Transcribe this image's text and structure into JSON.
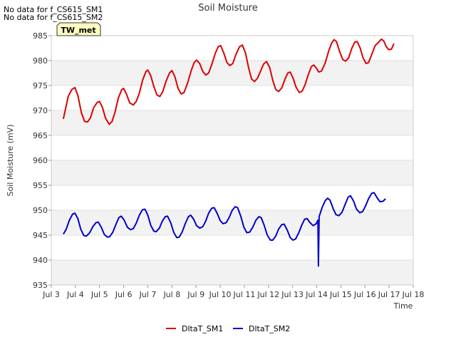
{
  "notes": [
    "No data for f_CS615_SM1",
    "No data for f_CS615_SM2"
  ],
  "chart_data": {
    "type": "line",
    "title": "Soil Moisture",
    "xlabel": "Time",
    "ylabel": "Soil Moisture (mV)",
    "badge": "TW_met",
    "xlim": [
      3,
      18
    ],
    "ylim": [
      935,
      985
    ],
    "x_ticks": [
      3,
      4,
      5,
      6,
      7,
      8,
      9,
      10,
      11,
      12,
      13,
      14,
      15,
      16,
      17,
      18
    ],
    "x_tick_labels": [
      "Jul 3",
      "Jul 4",
      "Jul 5",
      "Jul 6",
      "Jul 7",
      "Jul 8",
      "Jul 9",
      "Jul 10",
      "Jul 11",
      "Jul 12",
      "Jul 13",
      "Jul 14",
      "Jul 15",
      "Jul 16",
      "Jul 17",
      "Jul 18"
    ],
    "y_ticks": [
      935,
      940,
      945,
      950,
      955,
      960,
      965,
      970,
      975,
      980,
      985
    ],
    "grid": true,
    "legend_position": "bottom",
    "series": [
      {
        "name": "DltaT_SM1",
        "color": "#dd0000",
        "points": [
          [
            3.5,
            968.3
          ],
          [
            3.6,
            970.5
          ],
          [
            3.7,
            972.8
          ],
          [
            3.85,
            974.2
          ],
          [
            3.98,
            974.6
          ],
          [
            4.1,
            973.0
          ],
          [
            4.25,
            969.5
          ],
          [
            4.38,
            967.8
          ],
          [
            4.5,
            967.7
          ],
          [
            4.62,
            968.5
          ],
          [
            4.75,
            970.5
          ],
          [
            4.9,
            971.6
          ],
          [
            5.0,
            971.8
          ],
          [
            5.12,
            970.6
          ],
          [
            5.25,
            968.4
          ],
          [
            5.4,
            967.2
          ],
          [
            5.52,
            967.8
          ],
          [
            5.65,
            969.8
          ],
          [
            5.78,
            972.5
          ],
          [
            5.92,
            974.2
          ],
          [
            6.0,
            974.4
          ],
          [
            6.12,
            973.2
          ],
          [
            6.25,
            971.5
          ],
          [
            6.4,
            971.1
          ],
          [
            6.52,
            971.8
          ],
          [
            6.65,
            973.5
          ],
          [
            6.78,
            976.0
          ],
          [
            6.92,
            977.8
          ],
          [
            7.0,
            978.1
          ],
          [
            7.12,
            977.0
          ],
          [
            7.25,
            974.8
          ],
          [
            7.38,
            973.1
          ],
          [
            7.5,
            972.8
          ],
          [
            7.62,
            973.8
          ],
          [
            7.75,
            975.8
          ],
          [
            7.9,
            977.5
          ],
          [
            8.0,
            978.0
          ],
          [
            8.12,
            976.8
          ],
          [
            8.25,
            974.5
          ],
          [
            8.38,
            973.3
          ],
          [
            8.5,
            973.6
          ],
          [
            8.65,
            975.5
          ],
          [
            8.8,
            978.0
          ],
          [
            8.92,
            979.6
          ],
          [
            9.02,
            980.1
          ],
          [
            9.15,
            979.4
          ],
          [
            9.28,
            977.8
          ],
          [
            9.4,
            977.1
          ],
          [
            9.52,
            977.5
          ],
          [
            9.65,
            979.2
          ],
          [
            9.8,
            981.5
          ],
          [
            9.92,
            982.8
          ],
          [
            10.02,
            983.0
          ],
          [
            10.15,
            981.5
          ],
          [
            10.28,
            979.6
          ],
          [
            10.4,
            979.0
          ],
          [
            10.52,
            979.4
          ],
          [
            10.65,
            981.2
          ],
          [
            10.8,
            982.8
          ],
          [
            10.92,
            983.1
          ],
          [
            11.05,
            981.5
          ],
          [
            11.18,
            978.5
          ],
          [
            11.3,
            976.3
          ],
          [
            11.42,
            975.8
          ],
          [
            11.55,
            976.5
          ],
          [
            11.68,
            978.0
          ],
          [
            11.8,
            979.3
          ],
          [
            11.92,
            979.8
          ],
          [
            12.05,
            978.6
          ],
          [
            12.18,
            976.0
          ],
          [
            12.3,
            974.2
          ],
          [
            12.42,
            973.8
          ],
          [
            12.55,
            974.5
          ],
          [
            12.68,
            976.2
          ],
          [
            12.8,
            977.5
          ],
          [
            12.9,
            977.7
          ],
          [
            13.02,
            976.5
          ],
          [
            13.15,
            974.6
          ],
          [
            13.28,
            973.6
          ],
          [
            13.4,
            973.9
          ],
          [
            13.52,
            975.2
          ],
          [
            13.65,
            977.2
          ],
          [
            13.78,
            978.8
          ],
          [
            13.88,
            979.1
          ],
          [
            14.0,
            978.4
          ],
          [
            14.08,
            977.7
          ],
          [
            14.2,
            977.9
          ],
          [
            14.35,
            979.5
          ],
          [
            14.5,
            982.0
          ],
          [
            14.62,
            983.5
          ],
          [
            14.72,
            984.2
          ],
          [
            14.82,
            983.8
          ],
          [
            14.95,
            981.8
          ],
          [
            15.08,
            980.2
          ],
          [
            15.2,
            979.9
          ],
          [
            15.32,
            980.5
          ],
          [
            15.45,
            982.4
          ],
          [
            15.58,
            983.7
          ],
          [
            15.68,
            983.8
          ],
          [
            15.8,
            982.5
          ],
          [
            15.92,
            980.5
          ],
          [
            16.05,
            979.4
          ],
          [
            16.15,
            979.6
          ],
          [
            16.28,
            981.2
          ],
          [
            16.42,
            983.0
          ],
          [
            16.55,
            983.6
          ],
          [
            16.68,
            984.3
          ],
          [
            16.78,
            983.9
          ],
          [
            16.88,
            982.8
          ],
          [
            16.98,
            982.2
          ],
          [
            17.1,
            982.3
          ],
          [
            17.2,
            983.4
          ]
        ]
      },
      {
        "name": "DltaT_SM2",
        "color": "#0000cc",
        "points": [
          [
            3.5,
            945.2
          ],
          [
            3.62,
            946.2
          ],
          [
            3.75,
            948.0
          ],
          [
            3.88,
            949.2
          ],
          [
            3.98,
            949.4
          ],
          [
            4.1,
            948.3
          ],
          [
            4.22,
            946.2
          ],
          [
            4.35,
            944.9
          ],
          [
            4.45,
            944.8
          ],
          [
            4.58,
            945.4
          ],
          [
            4.72,
            946.7
          ],
          [
            4.85,
            947.5
          ],
          [
            4.95,
            947.6
          ],
          [
            5.08,
            946.5
          ],
          [
            5.2,
            945.1
          ],
          [
            5.32,
            944.6
          ],
          [
            5.42,
            944.7
          ],
          [
            5.55,
            945.6
          ],
          [
            5.68,
            947.2
          ],
          [
            5.8,
            948.5
          ],
          [
            5.9,
            948.8
          ],
          [
            6.02,
            948.0
          ],
          [
            6.15,
            946.6
          ],
          [
            6.28,
            946.1
          ],
          [
            6.4,
            946.3
          ],
          [
            6.52,
            947.4
          ],
          [
            6.65,
            949.0
          ],
          [
            6.78,
            950.1
          ],
          [
            6.88,
            950.2
          ],
          [
            7.0,
            949.0
          ],
          [
            7.12,
            947.0
          ],
          [
            7.25,
            945.8
          ],
          [
            7.35,
            945.7
          ],
          [
            7.48,
            946.4
          ],
          [
            7.6,
            947.8
          ],
          [
            7.72,
            948.7
          ],
          [
            7.82,
            948.8
          ],
          [
            7.95,
            947.5
          ],
          [
            8.08,
            945.5
          ],
          [
            8.2,
            944.5
          ],
          [
            8.3,
            944.6
          ],
          [
            8.42,
            945.6
          ],
          [
            8.55,
            947.3
          ],
          [
            8.68,
            948.7
          ],
          [
            8.78,
            949.0
          ],
          [
            8.9,
            948.2
          ],
          [
            9.02,
            946.9
          ],
          [
            9.15,
            946.4
          ],
          [
            9.28,
            946.7
          ],
          [
            9.4,
            947.8
          ],
          [
            9.52,
            949.4
          ],
          [
            9.65,
            950.4
          ],
          [
            9.75,
            950.5
          ],
          [
            9.88,
            949.3
          ],
          [
            10.0,
            947.9
          ],
          [
            10.12,
            947.3
          ],
          [
            10.25,
            947.5
          ],
          [
            10.38,
            948.6
          ],
          [
            10.5,
            950.0
          ],
          [
            10.62,
            950.7
          ],
          [
            10.72,
            950.5
          ],
          [
            10.85,
            948.8
          ],
          [
            10.98,
            946.6
          ],
          [
            11.1,
            945.5
          ],
          [
            11.22,
            945.6
          ],
          [
            11.35,
            946.6
          ],
          [
            11.48,
            948.0
          ],
          [
            11.6,
            948.7
          ],
          [
            11.7,
            948.5
          ],
          [
            11.82,
            947.0
          ],
          [
            11.95,
            945.0
          ],
          [
            12.08,
            944.0
          ],
          [
            12.18,
            944.0
          ],
          [
            12.3,
            944.8
          ],
          [
            12.42,
            946.2
          ],
          [
            12.55,
            947.1
          ],
          [
            12.65,
            947.2
          ],
          [
            12.78,
            946.0
          ],
          [
            12.9,
            944.5
          ],
          [
            13.02,
            944.0
          ],
          [
            13.12,
            944.2
          ],
          [
            13.25,
            945.4
          ],
          [
            13.38,
            947.0
          ],
          [
            13.5,
            948.2
          ],
          [
            13.6,
            948.3
          ],
          [
            13.72,
            947.5
          ],
          [
            13.85,
            946.9
          ],
          [
            13.98,
            947.3
          ],
          [
            14.05,
            948.0
          ],
          [
            14.07,
            938.8
          ],
          [
            14.1,
            948.7
          ],
          [
            14.22,
            950.5
          ],
          [
            14.35,
            951.9
          ],
          [
            14.45,
            952.4
          ],
          [
            14.55,
            952.0
          ],
          [
            14.68,
            950.3
          ],
          [
            14.8,
            949.1
          ],
          [
            14.92,
            948.9
          ],
          [
            15.05,
            949.6
          ],
          [
            15.18,
            951.2
          ],
          [
            15.3,
            952.6
          ],
          [
            15.4,
            952.9
          ],
          [
            15.52,
            951.9
          ],
          [
            15.65,
            950.2
          ],
          [
            15.78,
            949.5
          ],
          [
            15.9,
            949.7
          ],
          [
            16.02,
            950.8
          ],
          [
            16.15,
            952.3
          ],
          [
            16.28,
            953.4
          ],
          [
            16.38,
            953.5
          ],
          [
            16.5,
            952.5
          ],
          [
            16.62,
            951.7
          ],
          [
            16.75,
            951.8
          ],
          [
            16.85,
            952.3
          ]
        ]
      }
    ]
  }
}
